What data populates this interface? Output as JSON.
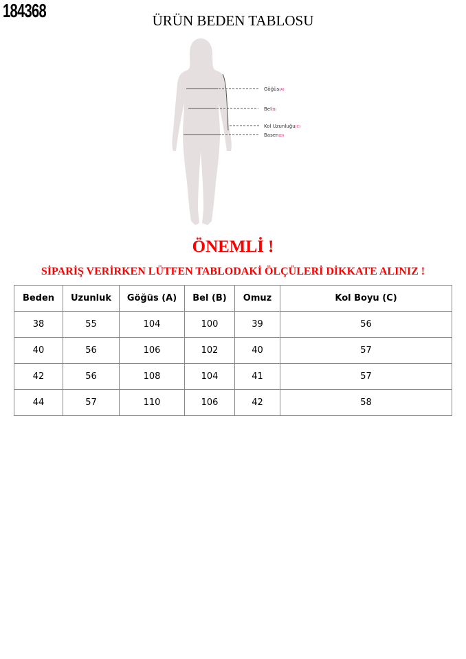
{
  "product_code": "184368",
  "title": "ÜRÜN BEDEN TABLOSU",
  "figure": {
    "labels": [
      {
        "text": "Göğüs",
        "tag": "(A)"
      },
      {
        "text": "Bel",
        "tag": "(B)"
      },
      {
        "text": "Kol Uzunluğu",
        "tag": "(C)"
      },
      {
        "text": "Basen",
        "tag": "(D)"
      }
    ],
    "tag_color": "#e0207a",
    "silhouette_color": "#e6dfe0"
  },
  "important": "ÖNEMLİ !",
  "warning": "SİPARİŞ VERİRKEN LÜTFEN TABLODAKİ ÖLÇÜLERİ DİKKATE ALINIZ !",
  "table": {
    "headers": [
      "Beden",
      "Uzunluk",
      "Göğüs (A)",
      "Bel (B)",
      "Omuz",
      "Kol Boyu (C)"
    ],
    "rows": [
      [
        "38",
        "55",
        "104",
        "100",
        "39",
        "56"
      ],
      [
        "40",
        "56",
        "106",
        "102",
        "40",
        "57"
      ],
      [
        "42",
        "56",
        "108",
        "104",
        "41",
        "57"
      ],
      [
        "44",
        "57",
        "110",
        "106",
        "42",
        "58"
      ]
    ]
  }
}
